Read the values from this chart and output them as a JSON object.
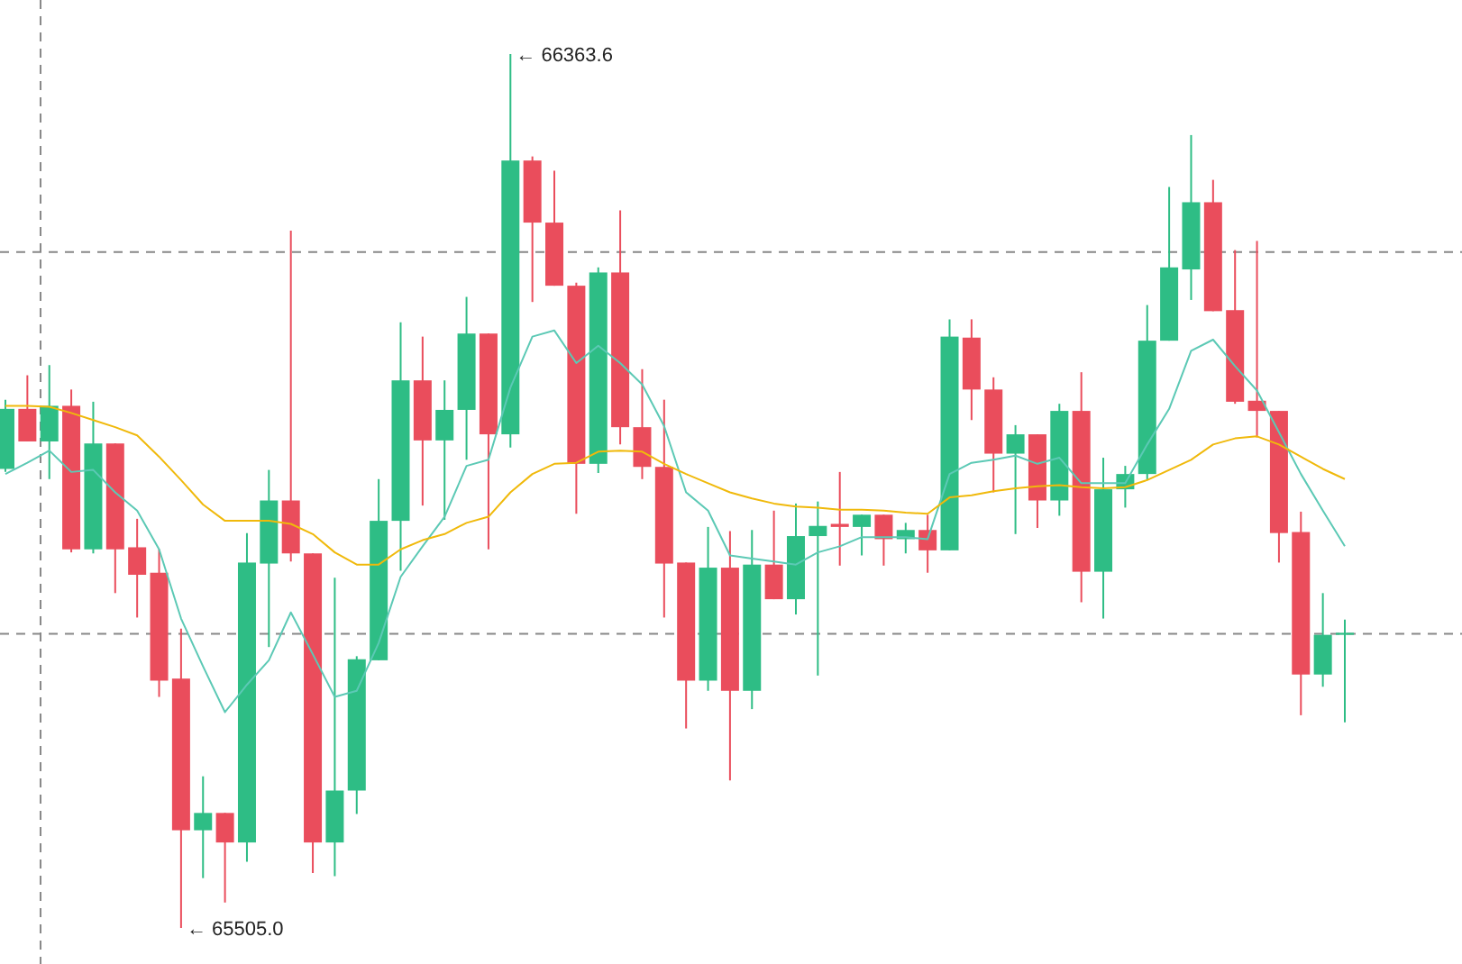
{
  "chart_data": {
    "type": "candlestick",
    "categories": [
      null,
      null,
      null,
      null,
      null,
      null,
      null,
      null,
      null,
      null,
      null,
      null,
      null,
      null,
      null,
      null,
      null,
      null,
      null,
      null,
      null,
      null,
      null,
      null,
      null,
      null,
      null,
      null,
      null,
      null,
      null,
      null,
      null,
      null,
      null,
      null,
      null,
      null,
      null,
      null,
      null,
      null,
      null,
      null,
      null,
      null,
      null,
      null,
      null,
      null,
      null,
      null,
      null,
      null,
      null,
      null,
      null,
      null,
      null,
      null,
      null,
      null
    ],
    "ohlc": [
      [
        65956,
        66024,
        65953,
        66015
      ],
      [
        66015,
        66048,
        65983,
        65983
      ],
      [
        65983,
        66058,
        65946,
        66018
      ],
      [
        66018,
        66034,
        65874,
        65877
      ],
      [
        65877,
        66022,
        65873,
        65981
      ],
      [
        65981,
        65981,
        65834,
        65877
      ],
      [
        65879,
        65907,
        65810,
        65852
      ],
      [
        65854,
        65877,
        65732,
        65748
      ],
      [
        65750,
        65799,
        65505.0,
        65601
      ],
      [
        65601,
        65654,
        65554,
        65618
      ],
      [
        65618,
        65618,
        65530,
        65589
      ],
      [
        65589,
        65893,
        65570,
        65864
      ],
      [
        65863,
        65955,
        65781,
        65925
      ],
      [
        65925,
        66190,
        65865,
        65873
      ],
      [
        65873,
        65873,
        65559,
        65589
      ],
      [
        65589,
        65849,
        65556,
        65640
      ],
      [
        65640,
        65772,
        65617,
        65769
      ],
      [
        65768,
        65946,
        65768,
        65905
      ],
      [
        65905,
        66100,
        65856,
        66043
      ],
      [
        66043,
        66086,
        65920,
        65984
      ],
      [
        65984,
        66043,
        65906,
        66014
      ],
      [
        66014,
        66125,
        65965,
        66089
      ],
      [
        66089,
        66089,
        65877,
        65990
      ],
      [
        65990,
        66363.6,
        65977,
        66259
      ],
      [
        66259,
        66263,
        66120,
        66198
      ],
      [
        66198,
        66249,
        66136,
        66136
      ],
      [
        66136,
        66139,
        65912,
        65961
      ],
      [
        65961,
        66154,
        65952,
        66149
      ],
      [
        66149,
        66210,
        65980,
        65997
      ],
      [
        65997,
        66054,
        65946,
        65958
      ],
      [
        65958,
        66024,
        65810,
        65863
      ],
      [
        65864,
        65864,
        65701,
        65748
      ],
      [
        65748,
        65899,
        65738,
        65859
      ],
      [
        65859,
        65895,
        65650,
        65738
      ],
      [
        65738,
        65896,
        65720,
        65862
      ],
      [
        65862,
        65915,
        65828,
        65828
      ],
      [
        65828,
        65922,
        65813,
        65890
      ],
      [
        65890,
        65924,
        65753,
        65900
      ],
      [
        65902,
        65953,
        65861,
        65899
      ],
      [
        65899,
        65911,
        65871,
        65911
      ],
      [
        65911,
        65911,
        65861,
        65887
      ],
      [
        65887,
        65903,
        65873,
        65896
      ],
      [
        65896,
        65911,
        65854,
        65876
      ],
      [
        65876,
        66103,
        65876,
        66086
      ],
      [
        66085,
        66103,
        66004,
        66034
      ],
      [
        66034,
        66046,
        65933,
        65971
      ],
      [
        65971,
        65999,
        65892,
        65990
      ],
      [
        65990,
        65990,
        65898,
        65925
      ],
      [
        65925,
        66020,
        65910,
        66013
      ],
      [
        66013,
        66051,
        65825,
        65855
      ],
      [
        65855,
        65967,
        65809,
        65936
      ],
      [
        65936,
        65959,
        65918,
        65951
      ],
      [
        65951,
        66117,
        65945,
        66082
      ],
      [
        66082,
        66233,
        66082,
        66154
      ],
      [
        66152,
        66284,
        66122,
        66218
      ],
      [
        66218,
        66240,
        66111,
        66111
      ],
      [
        66112,
        66171,
        66020,
        66022
      ],
      [
        66023,
        66180,
        65987,
        66013
      ],
      [
        66013,
        66013,
        65864,
        65893
      ],
      [
        65894,
        65914,
        65714,
        65754
      ],
      [
        65754,
        65834,
        65742,
        65793
      ],
      [
        65793,
        65808,
        65707,
        65795
      ]
    ],
    "colors": [
      "#2ebd85",
      "#ea4d5c",
      "#2ebd85",
      "#ea4d5c",
      "#2ebd85",
      "#ea4d5c",
      "#ea4d5c",
      "#ea4d5c",
      "#ea4d5c",
      "#2ebd85",
      "#ea4d5c",
      "#2ebd85",
      "#2ebd85",
      "#ea4d5c",
      "#ea4d5c",
      "#2ebd85",
      "#2ebd85",
      "#2ebd85",
      "#2ebd85",
      "#ea4d5c",
      "#2ebd85",
      "#2ebd85",
      "#ea4d5c",
      "#2ebd85",
      "#ea4d5c",
      "#ea4d5c",
      "#ea4d5c",
      "#2ebd85",
      "#ea4d5c",
      "#ea4d5c",
      "#ea4d5c",
      "#ea4d5c",
      "#2ebd85",
      "#ea4d5c",
      "#2ebd85",
      "#ea4d5c",
      "#2ebd85",
      "#2ebd85",
      "#ea4d5c",
      "#2ebd85",
      "#ea4d5c",
      "#2ebd85",
      "#ea4d5c",
      "#2ebd85",
      "#ea4d5c",
      "#ea4d5c",
      "#2ebd85",
      "#ea4d5c",
      "#2ebd85",
      "#ea4d5c",
      "#2ebd85",
      "#2ebd85",
      "#2ebd85",
      "#2ebd85",
      "#2ebd85",
      "#ea4d5c",
      "#ea4d5c",
      "#ea4d5c",
      "#ea4d5c",
      "#ea4d5c",
      "#2ebd85",
      "#2ebd85"
    ],
    "series": [
      {
        "type": "line",
        "color": "#5cc9b5",
        "values": [
          65951,
          65962,
          65974,
          65953,
          65955,
          65933,
          65915,
          65877,
          65809,
          65762,
          65717,
          65744,
          65768,
          65815,
          65774,
          65732,
          65738,
          65785,
          65850,
          65880,
          65909,
          65959,
          65965,
          66036,
          66086,
          66092,
          66060,
          66077,
          66060,
          66039,
          65998,
          65933,
          65915,
          65871,
          65868,
          65865,
          65862,
          65874,
          65880,
          65889,
          65889,
          65889,
          65887,
          65951,
          65962,
          65965,
          65969,
          65961,
          65967,
          65942,
          65942,
          65942,
          65980,
          66015,
          66072,
          66083,
          66057,
          66033,
          65992,
          65951,
          65915,
          65880
        ]
      },
      {
        "type": "line",
        "color": "#f0b90b",
        "values": [
          66018,
          66018,
          66017,
          66011,
          66004,
          65997,
          65989,
          65968,
          65945,
          65921,
          65905,
          65905,
          65905,
          65902,
          65892,
          65874,
          65862,
          65862,
          65877,
          65886,
          65892,
          65903,
          65909,
          65933,
          65951,
          65961,
          65962,
          65973,
          65974,
          65973,
          65961,
          65951,
          65942,
          65933,
          65927,
          65922,
          65919,
          65918,
          65916,
          65916,
          65915,
          65913,
          65912,
          65928,
          65930,
          65934,
          65937,
          65939,
          65940,
          65938,
          65937,
          65938,
          65945,
          65955,
          65965,
          65980,
          65986,
          65988,
          65980,
          65968,
          65956,
          65946
        ]
      }
    ],
    "ylim": [
      65469.6,
      66416.7
    ],
    "tick_labels": false,
    "line_style": "solid",
    "ref_lines": [
      {
        "axis": "y",
        "value": 66169,
        "color": "#888888",
        "line_style": "dashed"
      },
      {
        "axis": "y",
        "value": 65794,
        "color": "#888888",
        "line_style": "dashed"
      }
    ],
    "annotations": [
      "← 66363.6",
      "← 65505.0"
    ]
  }
}
